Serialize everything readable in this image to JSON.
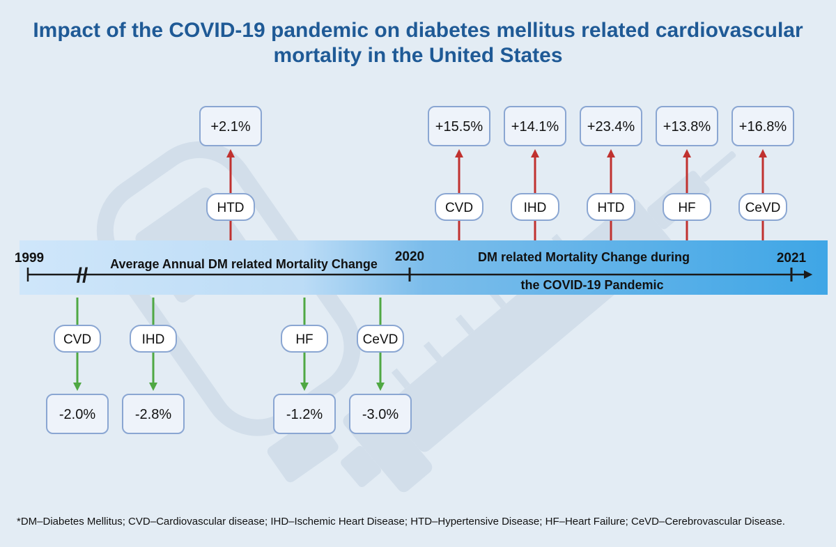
{
  "title": "Impact of the COVID-19 pandemic on diabetes mellitus related cardiovascular mortality in the United States",
  "timeline": {
    "years": [
      "1999",
      "2020",
      "2021"
    ],
    "break_marker": "//",
    "pre_label": "Average Annual DM related Mortality Change",
    "pandemic_label_line1": "DM related Mortality Change during",
    "pandemic_label_line2": "the COVID-19 Pandemic"
  },
  "pre_pandemic": {
    "increases": [
      {
        "label": "HTD",
        "value": "+2.1%"
      }
    ],
    "decreases": [
      {
        "label": "CVD",
        "value": "-2.0%"
      },
      {
        "label": "IHD",
        "value": "-2.8%"
      },
      {
        "label": "HF",
        "value": "-1.2%"
      },
      {
        "label": "CeVD",
        "value": "-3.0%"
      }
    ]
  },
  "pandemic": {
    "increases": [
      {
        "label": "CVD",
        "value": "+15.5%"
      },
      {
        "label": "IHD",
        "value": "+14.1%"
      },
      {
        "label": "HTD",
        "value": "+23.4%"
      },
      {
        "label": "HF",
        "value": "+13.8%"
      },
      {
        "label": "CeVD",
        "value": "+16.8%"
      }
    ]
  },
  "colors": {
    "title": "#1f5a96",
    "up_arrow": "#c0312f",
    "down_arrow": "#4fa843",
    "box_border": "#8aa6d2",
    "timeline": "#1a1a1a",
    "band_light": "#cfe6fa",
    "band_dark": "#3fa6e6"
  },
  "footnote": "*DM–Diabetes Mellitus; CVD–Cardiovascular disease; IHD–Ischemic Heart Disease; HTD–Hypertensive Disease; HF–Heart Failure; CeVD–Cerebrovascular Disease."
}
